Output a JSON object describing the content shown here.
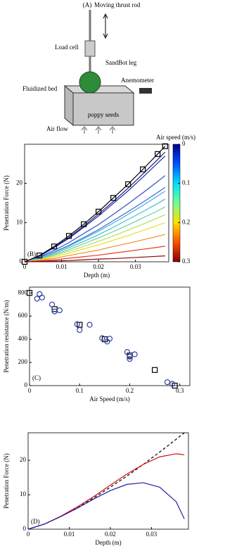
{
  "diagram": {
    "label": "(A)",
    "rod": "Moving thrust rod",
    "load_cell": "Load cell",
    "leg": "SandBot leg",
    "anemometer": "Anemometer",
    "bed": "Fluidized bed",
    "seeds": "poppy seeds",
    "air": "Air flow"
  },
  "chart_data": [
    {
      "type": "line",
      "label": "(B)",
      "ylabel": "Penetration Force (N)",
      "xlabel": "Depth (m)",
      "x": [
        0,
        0.004,
        0.008,
        0.012,
        0.016,
        0.02,
        0.024,
        0.028,
        0.032,
        0.036,
        0.038
      ],
      "xlim": [
        0,
        0.039
      ],
      "xticks": [
        0,
        0.01,
        0.02,
        0.03
      ],
      "ylim": [
        0,
        30
      ],
      "yticks": [
        0,
        10,
        20
      ],
      "series": [
        {
          "color": "#1a1a80",
          "values": [
            0,
            1.5,
            3.7,
            6.2,
            9.1,
            12.2,
            15.4,
            18.8,
            22.4,
            26.1,
            28
          ]
        },
        {
          "color": "#2030a0",
          "values": [
            0,
            1.4,
            3.6,
            6.0,
            8.8,
            11.7,
            14.9,
            18.1,
            21.6,
            25.2,
            27
          ]
        },
        {
          "color": "#3050c0",
          "values": [
            0,
            1.2,
            2.9,
            4.9,
            7.2,
            9.5,
            12.1,
            14.8,
            17.6,
            20.5,
            22
          ]
        },
        {
          "color": "#2a70d0",
          "values": [
            0,
            1.0,
            2.5,
            4.2,
            6.2,
            8.2,
            10.5,
            12.8,
            15.2,
            17.7,
            19
          ]
        },
        {
          "color": "#50a8e0",
          "values": [
            0,
            1.0,
            2.4,
            4.0,
            5.9,
            7.8,
            9.9,
            12.1,
            14.4,
            16.8,
            18
          ]
        },
        {
          "color": "#40c0d0",
          "values": [
            0,
            0.8,
            2.1,
            3.6,
            5.2,
            6.9,
            8.8,
            10.8,
            12.8,
            14.9,
            16
          ]
        },
        {
          "color": "#70d0a0",
          "values": [
            0,
            0.7,
            1.8,
            3.1,
            4.6,
            6.1,
            7.7,
            9.4,
            11.2,
            13.0,
            14
          ]
        },
        {
          "color": "#b0e060",
          "values": [
            0,
            0.6,
            1.6,
            2.7,
            3.9,
            5.2,
            6.6,
            8.1,
            9.6,
            11.2,
            12
          ]
        },
        {
          "color": "#e8e030",
          "values": [
            0,
            0.5,
            1.3,
            2.2,
            3.3,
            4.3,
            5.5,
            6.7,
            8.0,
            9.3,
            10
          ]
        },
        {
          "color": "#f09020",
          "values": [
            0,
            0.4,
            0.9,
            1.6,
            2.3,
            3.0,
            3.9,
            4.7,
            5.6,
            6.5,
            7
          ]
        },
        {
          "color": "#e04020",
          "values": [
            0,
            0.2,
            0.5,
            0.9,
            1.3,
            1.7,
            2.2,
            2.7,
            3.2,
            3.7,
            4
          ]
        },
        {
          "color": "#900000",
          "values": [
            0,
            0.1,
            0.2,
            0.3,
            0.5,
            0.7,
            0.8,
            1.0,
            1.2,
            1.4,
            1.5
          ]
        },
        {
          "color": "#000000",
          "marker": "square",
          "values": [
            0,
            1.6,
            3.9,
            6.6,
            9.6,
            12.8,
            16.3,
            19.8,
            23.6,
            27.5,
            29.5
          ]
        }
      ],
      "colorbar": {
        "label": "Air speed (m/s)",
        "lim": [
          0,
          0.3
        ],
        "ticks": [
          0,
          0.1,
          0.2,
          0.3
        ],
        "colors": [
          "#00008f",
          "#0050ff",
          "#00dfff",
          "#70ff90",
          "#ffe000",
          "#ff5000",
          "#800000"
        ]
      }
    },
    {
      "type": "scatter",
      "label": "(C)",
      "ylabel": "Penetration resistance (N/m)",
      "xlabel": "Air Speed (m/s)",
      "xlim": [
        0,
        0.32
      ],
      "xticks": [
        0,
        0.1,
        0.2,
        0.3
      ],
      "ylim": [
        0,
        850
      ],
      "yticks": [
        0,
        200,
        400,
        600,
        800
      ],
      "series": [
        {
          "color": "#000000",
          "marker": "square",
          "x": [
            0,
            0.05,
            0.1,
            0.15,
            0.2,
            0.25,
            0.29
          ],
          "values": [
            800,
            660,
            525,
            400,
            260,
            135,
            0
          ]
        },
        {
          "color": "#3040a0",
          "marker": "circle",
          "x": [
            0.015,
            0.02,
            0.025,
            0.045,
            0.05,
            0.06,
            0.095,
            0.1,
            0.12,
            0.145,
            0.155,
            0.16,
            0.195,
            0.2,
            0.21,
            0.2,
            0.275,
            0.285
          ],
          "values": [
            750,
            790,
            760,
            700,
            640,
            650,
            530,
            480,
            525,
            410,
            380,
            405,
            290,
            250,
            270,
            230,
            30,
            15
          ]
        }
      ]
    },
    {
      "type": "line",
      "label": "(D)",
      "ylabel": "Penetration Force (N)",
      "xlabel": "Depth (m)",
      "x": [
        0,
        0.004,
        0.008,
        0.012,
        0.016,
        0.02,
        0.024,
        0.028,
        0.032,
        0.036,
        0.038
      ],
      "xlim": [
        0,
        0.039
      ],
      "xticks": [
        0,
        0.01,
        0.02,
        0.03
      ],
      "ylim": [
        0,
        28
      ],
      "yticks": [
        0,
        10,
        20
      ],
      "series": [
        {
          "color": "#000000",
          "dash": true,
          "values": [
            0,
            1.5,
            3.7,
            6.2,
            9.1,
            12.2,
            15.4,
            18.8,
            22.4,
            26.1,
            28
          ]
        },
        {
          "color": "#cc1010",
          "values": [
            0,
            1.5,
            3.8,
            6.5,
            9.5,
            12.8,
            16,
            18.8,
            21,
            21.9,
            21.6
          ]
        },
        {
          "color": "#2020a0",
          "values": [
            0,
            1.5,
            3.7,
            6.1,
            8.8,
            11.2,
            13,
            13.5,
            12.2,
            8,
            3
          ]
        }
      ]
    }
  ]
}
